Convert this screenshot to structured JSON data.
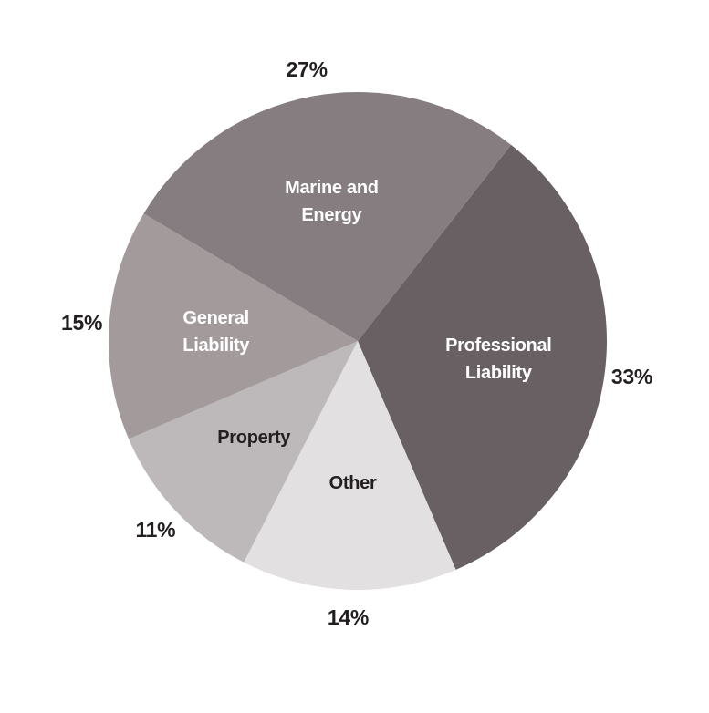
{
  "chart_data": {
    "type": "pie",
    "categories": [
      "Professional Liability",
      "Other",
      "Property",
      "General Liability",
      "Marine and Energy"
    ],
    "values": [
      33,
      14,
      11,
      15,
      27
    ],
    "value_labels": [
      "33%",
      "14%",
      "11%",
      "15%",
      "27%"
    ],
    "colors": [
      "#686062",
      "#e2e0e1",
      "#bdb8b9",
      "#a29a9b",
      "#857d7f"
    ]
  }
}
